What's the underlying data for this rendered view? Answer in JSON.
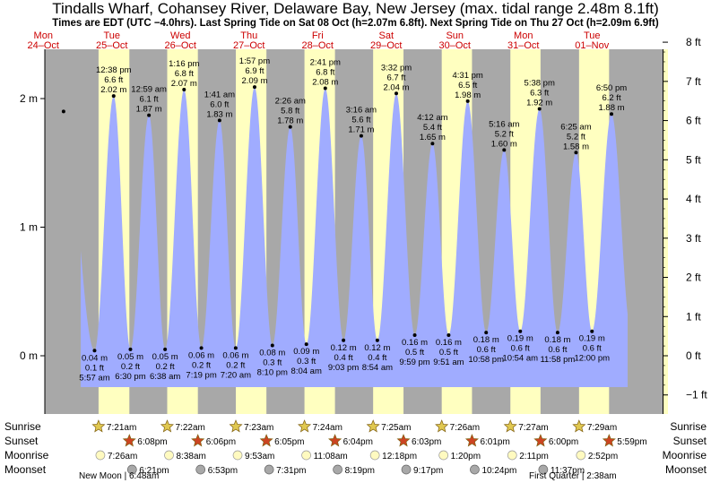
{
  "chart_data": {
    "type": "area",
    "title": "Tindalls Wharf, Cohansey River, Delaware Bay, New Jersey (max. tidal range 2.48m 8.1ft)",
    "subtitle": "Times are EDT (UTC −4.0hrs). Last Spring Tide on Sat 08 Oct (h=2.07m 6.8ft). Next Spring Tide on Thu 27 Oct (h=2.09m 6.9ft)",
    "ylabel_left": "m",
    "ylabel_right": "ft",
    "ylim_m": [
      -0.45,
      2.48
    ],
    "y_ticks_m": [
      {
        "value": 0,
        "label": "0 m"
      },
      {
        "value": 1,
        "label": "1 m"
      },
      {
        "value": 2,
        "label": "2 m"
      }
    ],
    "y_ticks_ft": [
      {
        "value": -1,
        "label": "−1 ft"
      },
      {
        "value": 0,
        "label": "0 ft"
      },
      {
        "value": 1,
        "label": "1 ft"
      },
      {
        "value": 2,
        "label": "2 ft"
      },
      {
        "value": 3,
        "label": "3 ft"
      },
      {
        "value": 4,
        "label": "4 ft"
      },
      {
        "value": 5,
        "label": "5 ft"
      },
      {
        "value": 6,
        "label": "6 ft"
      },
      {
        "value": 7,
        "label": "7 ft"
      },
      {
        "value": 8,
        "label": "8 ft"
      }
    ],
    "days": [
      {
        "dow": "Mon",
        "date": "24–Oct"
      },
      {
        "dow": "Tue",
        "date": "25–Oct"
      },
      {
        "dow": "Wed",
        "date": "26–Oct"
      },
      {
        "dow": "Thu",
        "date": "27–Oct"
      },
      {
        "dow": "Fri",
        "date": "28–Oct"
      },
      {
        "dow": "Sat",
        "date": "29–Oct"
      },
      {
        "dow": "Sun",
        "date": "30–Oct"
      },
      {
        "dow": "Mon",
        "date": "31–Oct"
      },
      {
        "dow": "Tue",
        "date": "01–Nov"
      }
    ],
    "tides": [
      {
        "type": "high",
        "day": 0,
        "t": 19.1,
        "h": 1.9,
        "labelled": false
      },
      {
        "type": "low",
        "day": 1,
        "t": 5.95,
        "h": 0.04,
        "time": "5:57 am",
        "ft": "0.1 ft",
        "m": "0.04 m"
      },
      {
        "type": "high",
        "day": 1,
        "t": 12.63,
        "h": 2.02,
        "time": "12:38 pm",
        "ft": "6.6 ft",
        "m": "2.02 m"
      },
      {
        "type": "low",
        "day": 1,
        "t": 18.5,
        "h": 0.05,
        "time": "6:30 pm",
        "ft": "0.2 ft",
        "m": "0.05 m"
      },
      {
        "type": "high",
        "day": 2,
        "t": 0.98,
        "h": 1.87,
        "time": "12:59 am",
        "ft": "6.1 ft",
        "m": "1.87 m"
      },
      {
        "type": "low",
        "day": 2,
        "t": 6.63,
        "h": 0.05,
        "time": "6:38 am",
        "ft": "0.2 ft",
        "m": "0.05 m"
      },
      {
        "type": "high",
        "day": 2,
        "t": 13.27,
        "h": 2.07,
        "time": "1:16 pm",
        "ft": "6.8 ft",
        "m": "2.07 m"
      },
      {
        "type": "low",
        "day": 2,
        "t": 19.32,
        "h": 0.06,
        "time": "7:19 pm",
        "ft": "0.2 ft",
        "m": "0.06 m"
      },
      {
        "type": "high",
        "day": 3,
        "t": 1.68,
        "h": 1.83,
        "time": "1:41 am",
        "ft": "6.0 ft",
        "m": "1.83 m"
      },
      {
        "type": "low",
        "day": 3,
        "t": 7.33,
        "h": 0.06,
        "time": "7:20 am",
        "ft": "0.2 ft",
        "m": "0.06 m"
      },
      {
        "type": "high",
        "day": 3,
        "t": 13.95,
        "h": 2.09,
        "time": "1:57 pm",
        "ft": "6.9 ft",
        "m": "2.09 m"
      },
      {
        "type": "low",
        "day": 3,
        "t": 20.17,
        "h": 0.08,
        "time": "8:10 pm",
        "ft": "0.3 ft",
        "m": "0.08 m"
      },
      {
        "type": "high",
        "day": 4,
        "t": 2.43,
        "h": 1.78,
        "time": "2:26 am",
        "ft": "5.8 ft",
        "m": "1.78 m"
      },
      {
        "type": "low",
        "day": 4,
        "t": 8.07,
        "h": 0.09,
        "time": "8:04 am",
        "ft": "0.3 ft",
        "m": "0.09 m"
      },
      {
        "type": "high",
        "day": 4,
        "t": 14.68,
        "h": 2.08,
        "time": "2:41 pm",
        "ft": "6.8 ft",
        "m": "2.08 m"
      },
      {
        "type": "low",
        "day": 4,
        "t": 21.05,
        "h": 0.12,
        "time": "9:03 pm",
        "ft": "0.4 ft",
        "m": "0.12 m"
      },
      {
        "type": "high",
        "day": 5,
        "t": 3.27,
        "h": 1.71,
        "time": "3:16 am",
        "ft": "5.6 ft",
        "m": "1.71 m"
      },
      {
        "type": "low",
        "day": 5,
        "t": 8.9,
        "h": 0.12,
        "time": "8:54 am",
        "ft": "0.4 ft",
        "m": "0.12 m"
      },
      {
        "type": "high",
        "day": 5,
        "t": 15.53,
        "h": 2.04,
        "time": "3:32 pm",
        "ft": "6.7 ft",
        "m": "2.04 m"
      },
      {
        "type": "low",
        "day": 5,
        "t": 21.98,
        "h": 0.16,
        "time": "9:59 pm",
        "ft": "0.5 ft",
        "m": "0.16 m"
      },
      {
        "type": "high",
        "day": 6,
        "t": 4.2,
        "h": 1.65,
        "time": "4:12 am",
        "ft": "5.4 ft",
        "m": "1.65 m"
      },
      {
        "type": "low",
        "day": 6,
        "t": 9.85,
        "h": 0.16,
        "time": "9:51 am",
        "ft": "0.5 ft",
        "m": "0.16 m"
      },
      {
        "type": "high",
        "day": 6,
        "t": 16.52,
        "h": 1.98,
        "time": "4:31 pm",
        "ft": "6.5 ft",
        "m": "1.98 m"
      },
      {
        "type": "low",
        "day": 6,
        "t": 22.97,
        "h": 0.18,
        "time": "10:58 pm",
        "ft": "0.6 ft",
        "m": "0.18 m"
      },
      {
        "type": "high",
        "day": 7,
        "t": 5.27,
        "h": 1.6,
        "time": "5:16 am",
        "ft": "5.2 ft",
        "m": "1.60 m"
      },
      {
        "type": "low",
        "day": 7,
        "t": 10.9,
        "h": 0.19,
        "time": "10:54 am",
        "ft": "0.6 ft",
        "m": "0.19 m"
      },
      {
        "type": "high",
        "day": 7,
        "t": 17.63,
        "h": 1.92,
        "time": "5:38 pm",
        "ft": "6.3 ft",
        "m": "1.92 m"
      },
      {
        "type": "low",
        "day": 7,
        "t": 23.97,
        "h": 0.18,
        "time": "11:58 pm",
        "ft": "0.6 ft",
        "m": "0.18 m"
      },
      {
        "type": "high",
        "day": 8,
        "t": 6.42,
        "h": 1.58,
        "time": "6:25 am",
        "ft": "5.2 ft",
        "m": "1.58 m"
      },
      {
        "type": "low",
        "day": 8,
        "t": 12.0,
        "h": 0.19,
        "time": "12:00 pm",
        "ft": "0.6 ft",
        "m": "0.19 m"
      },
      {
        "type": "high",
        "day": 8,
        "t": 18.83,
        "h": 1.88,
        "time": "6:50 pm",
        "ft": "6.2 ft",
        "m": "1.88 m"
      }
    ],
    "daylight": [
      {
        "day": 1,
        "rise": 7.35,
        "set": 18.13,
        "sunrise": "7:21am",
        "sunset": "6:08pm",
        "moonrise": "7:26am",
        "moonset": "6:21pm"
      },
      {
        "day": 2,
        "rise": 7.37,
        "set": 18.1,
        "sunrise": "7:22am",
        "sunset": "6:06pm",
        "moonrise": "8:38am",
        "moonset": "6:53pm"
      },
      {
        "day": 3,
        "rise": 7.38,
        "set": 18.08,
        "sunrise": "7:23am",
        "sunset": "6:05pm",
        "moonrise": "9:53am",
        "moonset": "7:31pm"
      },
      {
        "day": 4,
        "rise": 7.4,
        "set": 18.07,
        "sunrise": "7:24am",
        "sunset": "6:04pm",
        "moonrise": "11:08am",
        "moonset": "8:19pm"
      },
      {
        "day": 5,
        "rise": 7.42,
        "set": 18.05,
        "sunrise": "7:25am",
        "sunset": "6:03pm",
        "moonrise": "12:18pm",
        "moonset": "9:17pm"
      },
      {
        "day": 6,
        "rise": 7.43,
        "set": 18.02,
        "sunrise": "7:26am",
        "sunset": "6:01pm",
        "moonrise": "1:20pm",
        "moonset": "10:24pm"
      },
      {
        "day": 7,
        "rise": 7.45,
        "set": 18.0,
        "sunrise": "7:27am",
        "sunset": "6:00pm",
        "moonrise": "2:11pm",
        "moonset": "11:37pm"
      },
      {
        "day": 8,
        "rise": 7.48,
        "set": 17.98,
        "sunrise": "7:29am",
        "sunset": "5:59pm",
        "moonrise": "2:52pm",
        "moonset": ""
      }
    ],
    "row_labels": {
      "sunrise": "Sunrise",
      "sunset": "Sunset",
      "moonrise": "Moonrise",
      "moonset": "Moonset"
    },
    "moon_phases": [
      {
        "label": "New Moon | 6:48am",
        "day": 1,
        "t": 6.8
      },
      {
        "label": "First Quarter | 2:38am",
        "day": 8,
        "t": 2.63
      }
    ],
    "colors": {
      "night": "#a8a8a8",
      "day": "#ffffc0",
      "water": "#a0acff",
      "day_label": "#cc0000",
      "sun_star": "#e0c850",
      "sunset_star": "#cc4422",
      "moonrise": "#fffac0",
      "moonset": "#a8a8a8"
    }
  }
}
